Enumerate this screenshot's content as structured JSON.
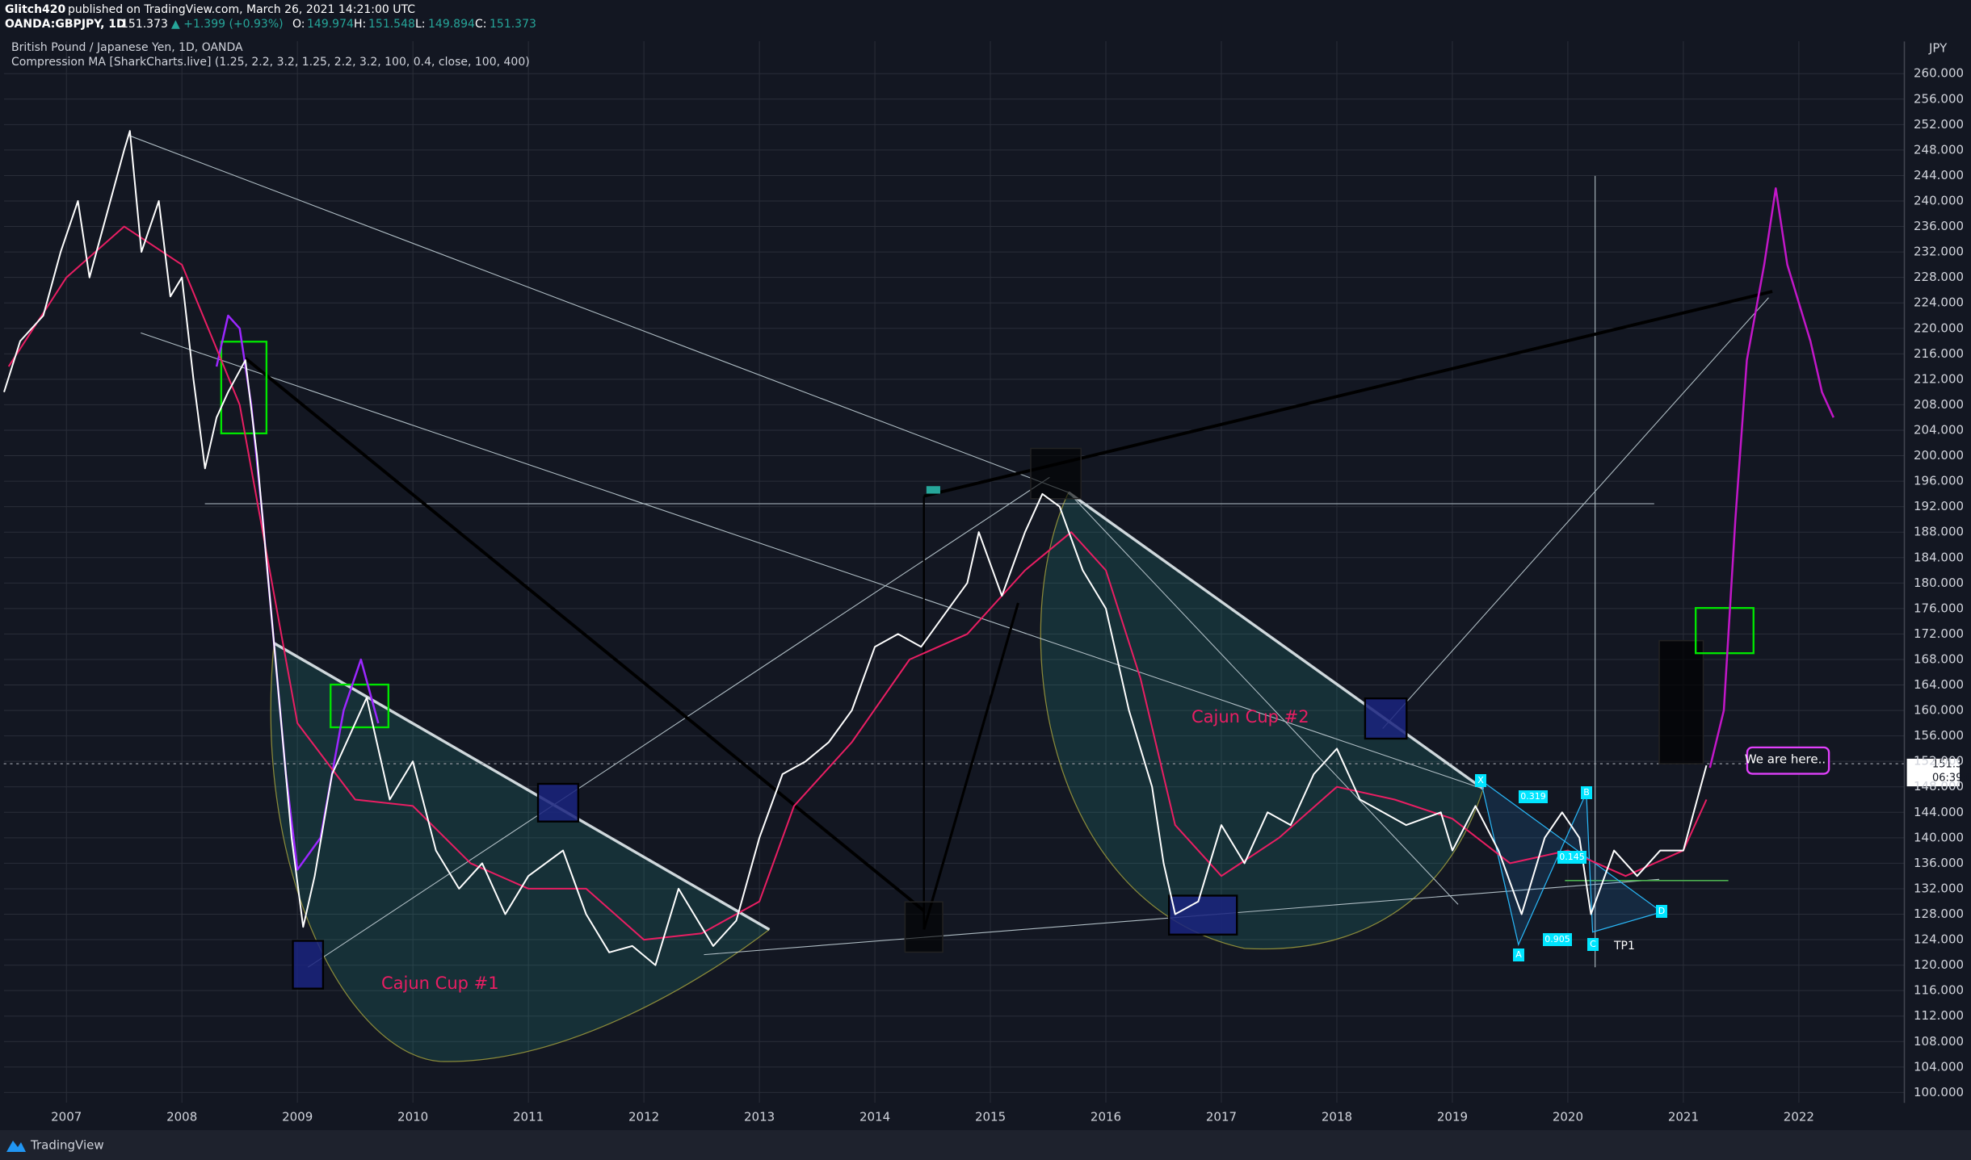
{
  "header": {
    "author": "Glitch420",
    "published": "published on TradingView.com, March 26, 2021 14:21:00 UTC",
    "symbol": "OANDA:GBPJPY, 1D",
    "last": "151.373",
    "change": "▲ +1.399 (+0.93%)",
    "o_label": "O:",
    "o": "149.974",
    "h_label": "H:",
    "h": "151.548",
    "l_label": "L:",
    "l": "149.894",
    "c_label": "C:",
    "c": "151.373"
  },
  "footer": {
    "brand": "TradingView"
  },
  "chart_data": {
    "type": "line",
    "title": "British Pound / Japanese Yen, 1D, OANDA",
    "subtitle": "Compression MA [SharkCharts.live] (1.25, 2.2, 3.2, 1.25, 2.2, 3.2, 100, 0.4, close, 100, 400)",
    "currency": "JPY",
    "annotations": [
      "Cajun Cup #1",
      "Cajun Cup #2",
      "We are here..",
      "TP1",
      "0.319",
      "0.145",
      "0.905",
      "X",
      "A",
      "B",
      "C",
      "D"
    ],
    "price_label": "151.373",
    "countdown": "06:39:01",
    "xlim": [
      2006.46,
      2022.91
    ],
    "ylim": [
      98.4,
      265.1
    ],
    "grid": true,
    "xticks": [
      2007,
      2008,
      2009,
      2010,
      2011,
      2012,
      2013,
      2014,
      2015,
      2016,
      2017,
      2018,
      2019,
      2020,
      2021,
      2022
    ],
    "yticks": [
      {
        "value": 100,
        "label": "100.000"
      },
      {
        "value": 104,
        "label": "104.000"
      },
      {
        "value": 108,
        "label": "108.000"
      },
      {
        "value": 112,
        "label": "112.000"
      },
      {
        "value": 116,
        "label": "116.000"
      },
      {
        "value": 120,
        "label": "120.000"
      },
      {
        "value": 124,
        "label": "124.000"
      },
      {
        "value": 128,
        "label": "128.000"
      },
      {
        "value": 132,
        "label": "132.000"
      },
      {
        "value": 136,
        "label": "136.000"
      },
      {
        "value": 140,
        "label": "140.000"
      },
      {
        "value": 144,
        "label": "144.000"
      },
      {
        "value": 148,
        "label": "148.000"
      },
      {
        "value": 152,
        "label": "152.000"
      },
      {
        "value": 156,
        "label": "156.000"
      },
      {
        "value": 160,
        "label": "160.000"
      },
      {
        "value": 164,
        "label": "164.000"
      },
      {
        "value": 168,
        "label": "168.000"
      },
      {
        "value": 172,
        "label": "172.000"
      },
      {
        "value": 176,
        "label": "176.000"
      },
      {
        "value": 180,
        "label": "180.000"
      },
      {
        "value": 184,
        "label": "184.000"
      },
      {
        "value": 188,
        "label": "188.000"
      },
      {
        "value": 192,
        "label": "192.000"
      },
      {
        "value": 196,
        "label": "196.000"
      },
      {
        "value": 200,
        "label": "200.000"
      },
      {
        "value": 204,
        "label": "204.000"
      },
      {
        "value": 208,
        "label": "208.000"
      },
      {
        "value": 212,
        "label": "212.000"
      },
      {
        "value": 216,
        "label": "216.000"
      },
      {
        "value": 220,
        "label": "220.000"
      },
      {
        "value": 224,
        "label": "224.000"
      },
      {
        "value": 228,
        "label": "228.000"
      },
      {
        "value": 232,
        "label": "232.000"
      },
      {
        "value": 236,
        "label": "236.000"
      },
      {
        "value": 240,
        "label": "240.000"
      },
      {
        "value": 244,
        "label": "244.000"
      },
      {
        "value": 248,
        "label": "248.000"
      },
      {
        "value": 252,
        "label": "252.000"
      },
      {
        "value": 256,
        "label": "256.000"
      },
      {
        "value": 260,
        "label": "260.000"
      }
    ],
    "series": [
      {
        "color": "#9c27ff",
        "width": 2.5,
        "x": [
          2008.3,
          2008.4,
          2008.5,
          2008.6,
          2008.7,
          2008.8,
          2008.9,
          2009.0,
          2009.2,
          2009.4,
          2009.55,
          2009.7
        ],
        "values": [
          214,
          222,
          220,
          208,
          190,
          170,
          150,
          135,
          140,
          160,
          168,
          158
        ]
      },
      {
        "color": "#e91e63",
        "width": 2,
        "x": [
          2006.5,
          2007.0,
          2007.5,
          2008.0,
          2008.5,
          2009.0,
          2009.5,
          2010.0,
          2010.5,
          2011.0,
          2011.5,
          2012.0,
          2012.5,
          2013.0,
          2013.3,
          2013.8,
          2014.3,
          2014.8,
          2015.3,
          2015.7,
          2016.0,
          2016.3,
          2016.6,
          2017.0,
          2017.5,
          2018.0,
          2018.5,
          2019.0,
          2019.5,
          2020.0,
          2020.5,
          2021.0,
          2021.2
        ],
        "values": [
          214,
          228,
          236,
          230,
          208,
          158,
          146,
          145,
          136,
          132,
          132,
          124,
          125,
          130,
          145,
          155,
          168,
          172,
          182,
          188,
          182,
          165,
          142,
          134,
          140,
          148,
          146,
          143,
          136,
          138,
          134,
          138,
          146
        ]
      },
      {
        "color": "#ffffff",
        "width": 2,
        "x": [
          2006.46,
          2006.6,
          2006.8,
          2006.95,
          2007.1,
          2007.2,
          2007.35,
          2007.5,
          2007.55,
          2007.65,
          2007.8,
          2007.9,
          2008.0,
          2008.1,
          2008.2,
          2008.3,
          2008.4,
          2008.55,
          2008.65,
          2008.75,
          2008.8,
          2008.95,
          2009.05,
          2009.15,
          2009.3,
          2009.5,
          2009.6,
          2009.8,
          2010.0,
          2010.2,
          2010.4,
          2010.6,
          2010.8,
          2011.0,
          2011.3,
          2011.5,
          2011.7,
          2011.9,
          2012.1,
          2012.3,
          2012.5,
          2012.6,
          2012.8,
          2013.0,
          2013.2,
          2013.4,
          2013.6,
          2013.8,
          2014.0,
          2014.2,
          2014.4,
          2014.6,
          2014.8,
          2014.9,
          2015.1,
          2015.3,
          2015.45,
          2015.6,
          2015.8,
          2016.0,
          2016.2,
          2016.4,
          2016.5,
          2016.6,
          2016.8,
          2017.0,
          2017.2,
          2017.4,
          2017.6,
          2017.8,
          2018.0,
          2018.2,
          2018.4,
          2018.6,
          2018.9,
          2019.0,
          2019.2,
          2019.4,
          2019.6,
          2019.8,
          2019.95,
          2020.1,
          2020.2,
          2020.4,
          2020.6,
          2020.8,
          2021.0,
          2021.2
        ],
        "values": [
          210,
          218,
          222,
          232,
          240,
          228,
          238,
          248,
          251,
          232,
          240,
          225,
          228,
          212,
          198,
          206,
          210,
          215,
          200,
          180,
          170,
          140,
          126,
          134,
          150,
          158,
          162,
          146,
          152,
          138,
          132,
          136,
          128,
          134,
          138,
          128,
          122,
          123,
          120,
          132,
          126,
          123,
          127,
          140,
          150,
          152,
          155,
          160,
          170,
          172,
          170,
          175,
          180,
          188,
          178,
          188,
          194,
          192,
          182,
          176,
          160,
          148,
          136,
          128,
          130,
          142,
          136,
          144,
          142,
          150,
          154,
          146,
          144,
          142,
          144,
          138,
          145,
          138,
          128,
          140,
          144,
          140,
          128,
          138,
          134,
          138,
          138,
          151.373
        ]
      },
      {
        "color": "#c217c8",
        "width": 2.5,
        "x": [
          2021.23,
          2021.35,
          2021.45,
          2021.55,
          2021.7,
          2021.8,
          2021.9,
          2022.0,
          2022.1,
          2022.2,
          2022.3
        ],
        "values": [
          151,
          160,
          190,
          215,
          230,
          242,
          230,
          224,
          218,
          210,
          206
        ]
      }
    ]
  }
}
